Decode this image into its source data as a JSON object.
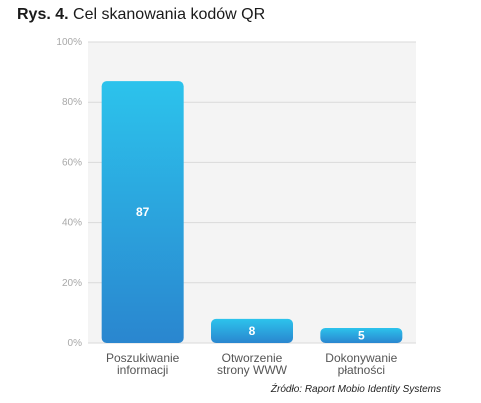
{
  "figure": {
    "label": "Rys. 4.",
    "title": "Cel skanowania kodów QR"
  },
  "chart_data": {
    "type": "bar",
    "categories": [
      [
        "Poszukiwanie",
        "informacji"
      ],
      [
        "Otworzenie",
        "strony WWW"
      ],
      [
        "Dokonywanie",
        "płatności"
      ]
    ],
    "values": [
      87,
      8,
      5
    ],
    "value_labels": [
      "87",
      "8",
      "5"
    ],
    "ylim": [
      0,
      100
    ],
    "yticks": [
      0,
      20,
      40,
      60,
      80,
      100
    ],
    "ytick_labels": [
      "0%",
      "20%",
      "40%",
      "60%",
      "80%",
      "100%"
    ],
    "grid": true,
    "legend": "none",
    "colors": {
      "bar_top": "#2cc3ec",
      "bar_bottom": "#2a86cf",
      "plot_bg": "#f4f4f4",
      "grid": "#dadada"
    }
  },
  "source": "Źródło: Raport Mobio Identity Systems"
}
